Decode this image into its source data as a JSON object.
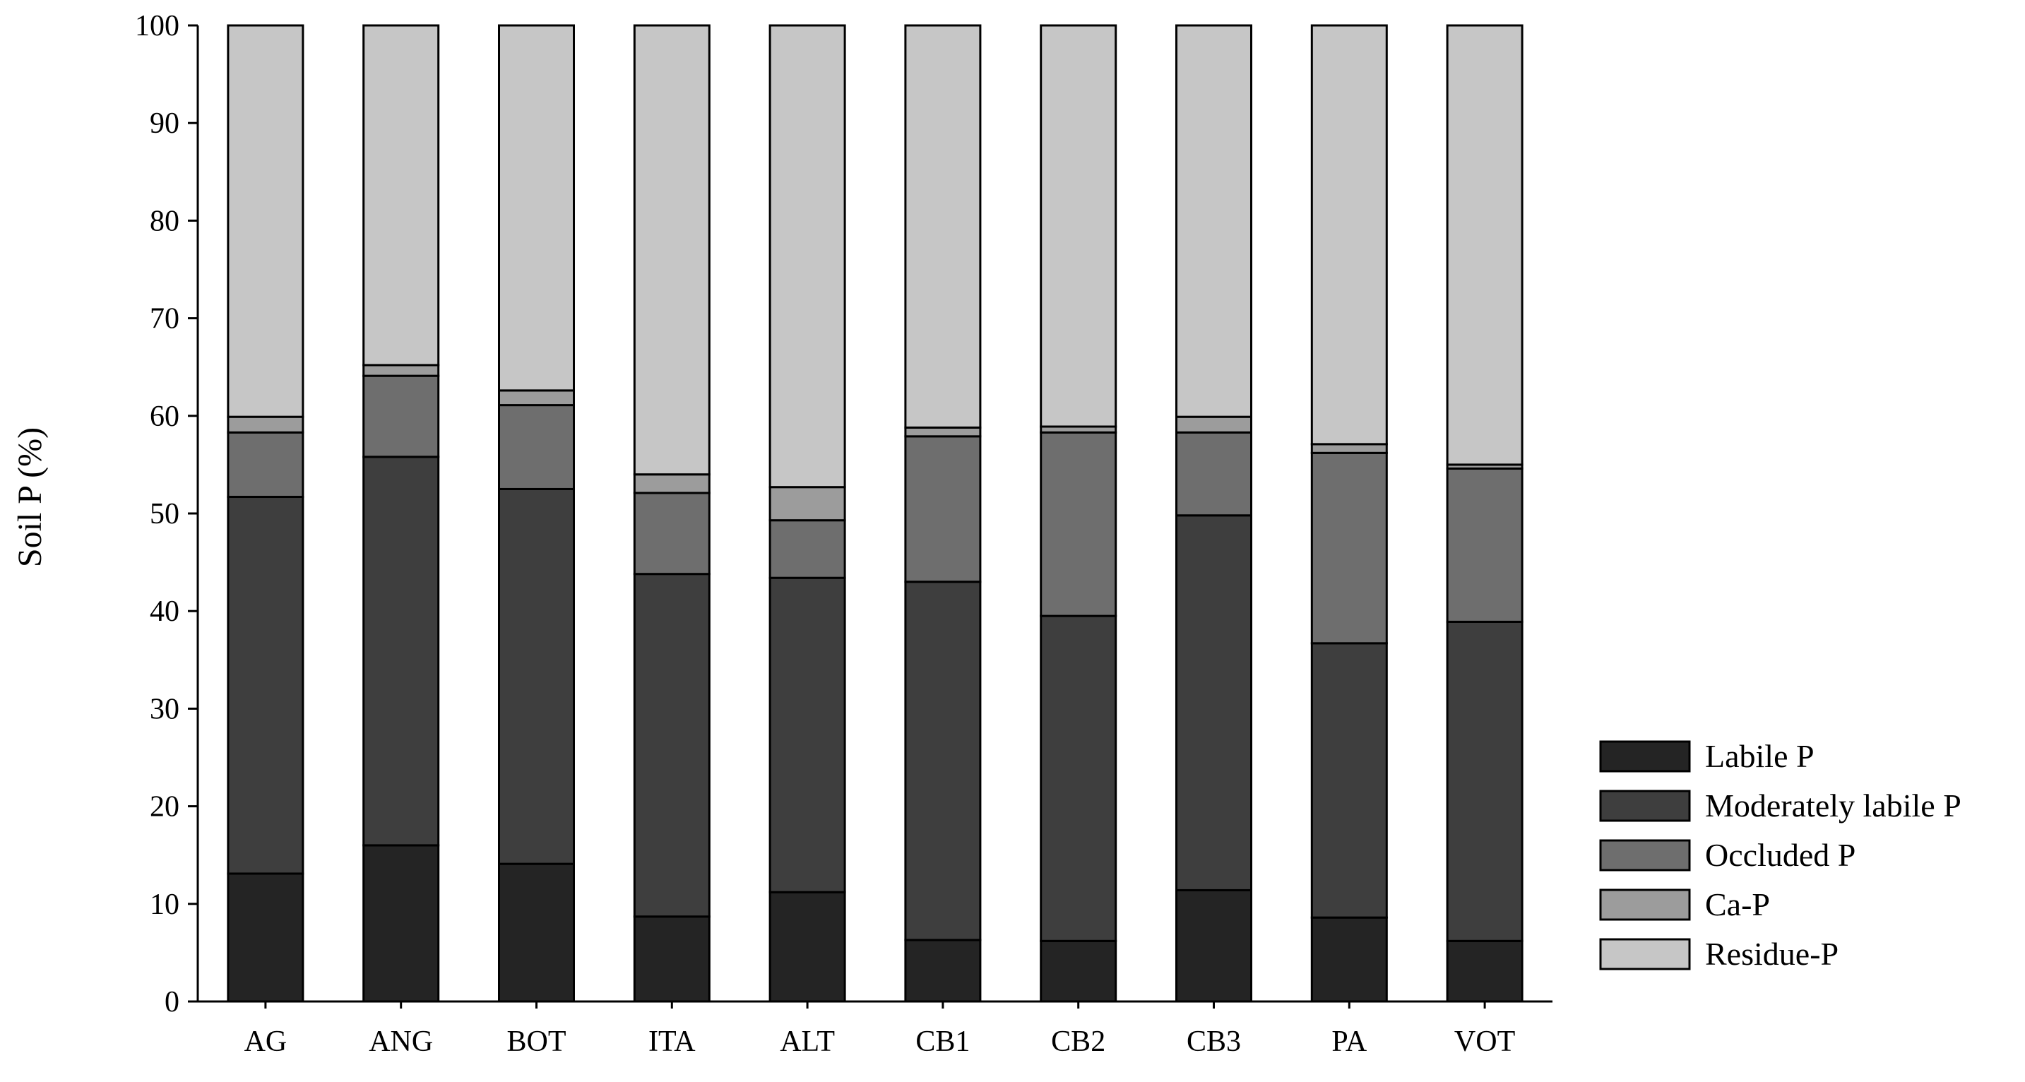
{
  "chart_data": {
    "type": "bar",
    "stacked": true,
    "title": "",
    "xlabel": "",
    "ylabel": "Soil P (%)",
    "ylim": [
      0,
      100
    ],
    "yticks": [
      0,
      10,
      20,
      30,
      40,
      50,
      60,
      70,
      80,
      90,
      100
    ],
    "grid": false,
    "legend_position": "bottom-right",
    "categories": [
      "AG",
      "ANG",
      "BOT",
      "ITA",
      "ALT",
      "CB1",
      "CB2",
      "CB3",
      "PA",
      "VOT"
    ],
    "series": [
      {
        "name": "Labile P",
        "color": "#242424",
        "values": [
          13.1,
          16.0,
          14.1,
          8.7,
          11.2,
          6.3,
          6.2,
          11.4,
          8.6,
          6.2
        ]
      },
      {
        "name": "Moderately labile P",
        "color": "#3e3e3e",
        "values": [
          38.6,
          39.8,
          38.4,
          35.1,
          32.2,
          36.7,
          33.3,
          38.4,
          28.1,
          32.7
        ]
      },
      {
        "name": "Occluded P",
        "color": "#6e6e6e",
        "values": [
          6.6,
          8.3,
          8.6,
          8.3,
          5.9,
          14.9,
          18.8,
          8.5,
          19.5,
          15.7
        ]
      },
      {
        "name": "Ca-P",
        "color": "#9c9c9c",
        "values": [
          1.6,
          1.1,
          1.5,
          1.9,
          3.4,
          0.9,
          0.6,
          1.6,
          0.9,
          0.4
        ]
      },
      {
        "name": "Residue-P",
        "color": "#c6c6c6",
        "values": [
          40.1,
          34.8,
          37.4,
          46.0,
          47.3,
          41.2,
          41.1,
          40.1,
          42.9,
          45.0
        ]
      }
    ]
  }
}
